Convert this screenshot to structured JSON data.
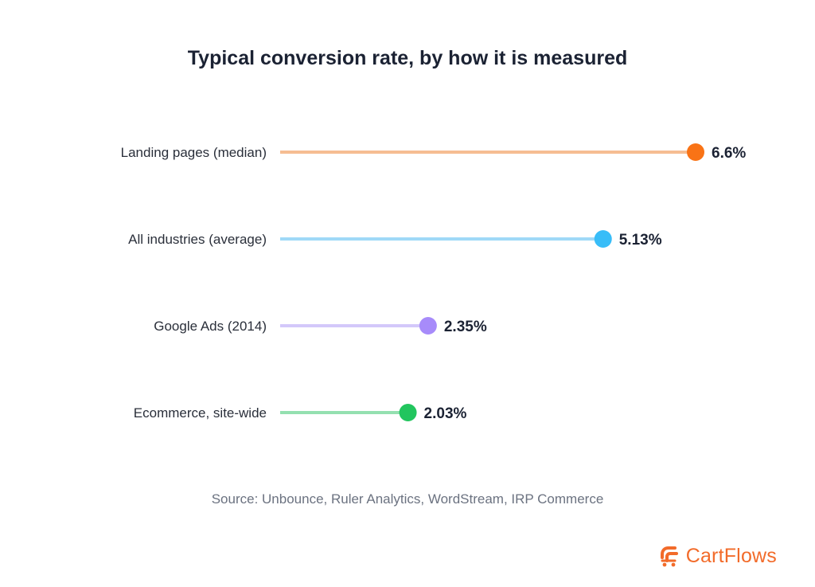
{
  "chart_data": {
    "type": "lollipop",
    "title": "Typical conversion rate, by how it is measured",
    "categories": [
      "Landing pages (median)",
      "All industries (average)",
      "Google Ads (2014)",
      "Ecommerce, site-wide"
    ],
    "values": [
      6.6,
      5.13,
      2.35,
      2.03
    ],
    "value_labels": [
      "6.6%",
      "5.13%",
      "2.35%",
      "2.03%"
    ],
    "unit": "%",
    "colors": {
      "stems": [
        "#f6bd92",
        "#9fd9f7",
        "#d3c8fa",
        "#94e0b0"
      ],
      "dots": [
        "#f97316",
        "#38bdf8",
        "#a78bfa",
        "#22c55e"
      ]
    },
    "xlim": [
      0,
      6.6
    ],
    "grid": false,
    "legend": "none",
    "source": "Source: Unbounce, Ruler Analytics, WordStream, IRP Commerce"
  },
  "brand": {
    "name": "CartFlows",
    "color": "#f26b2a",
    "icon": "cartflows-logo-icon"
  }
}
